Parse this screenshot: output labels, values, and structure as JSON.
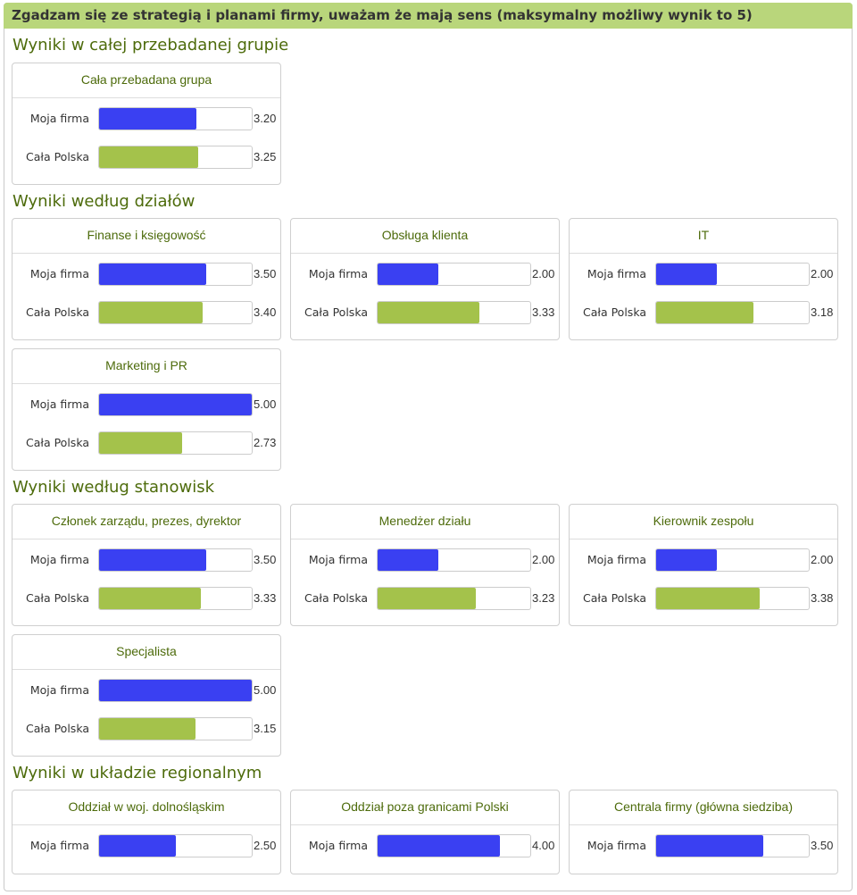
{
  "header": {
    "title": "Zgadzam się ze strategią i planami firmy, uważam że mają sens (maksymalny możliwy wynik to 5)"
  },
  "colors": {
    "moja_firma": "#3a40f2",
    "cala_polska": "#a4c24b",
    "accent": "#b9d67b",
    "title_text": "#4d6b0b"
  },
  "chart_data": {
    "type": "bar",
    "title": "Zgadzam się ze strategią i planami firmy, uważam że mają sens (maksymalny możliwy wynik to 5)",
    "xlim": [
      0,
      5
    ],
    "sections": [
      {
        "title": "Wyniki w całej przebadanej grupie",
        "panels": [
          {
            "title": "Cała przebadana grupa",
            "rows": [
              {
                "label": "Moja firma",
                "value": 3.2,
                "display": "3.20",
                "series": "moja"
              },
              {
                "label": "Cała Polska",
                "value": 3.25,
                "display": "3.25",
                "series": "polska"
              }
            ]
          }
        ]
      },
      {
        "title": "Wyniki według działów",
        "panels": [
          {
            "title": "Finanse i księgowość",
            "rows": [
              {
                "label": "Moja firma",
                "value": 3.5,
                "display": "3.50",
                "series": "moja"
              },
              {
                "label": "Cała Polska",
                "value": 3.4,
                "display": "3.40",
                "series": "polska"
              }
            ]
          },
          {
            "title": "Obsługa klienta",
            "rows": [
              {
                "label": "Moja firma",
                "value": 2.0,
                "display": "2.00",
                "series": "moja"
              },
              {
                "label": "Cała Polska",
                "value": 3.33,
                "display": "3.33",
                "series": "polska"
              }
            ]
          },
          {
            "title": "IT",
            "rows": [
              {
                "label": "Moja firma",
                "value": 2.0,
                "display": "2.00",
                "series": "moja"
              },
              {
                "label": "Cała Polska",
                "value": 3.18,
                "display": "3.18",
                "series": "polska"
              }
            ]
          },
          {
            "title": "Marketing i PR",
            "rows": [
              {
                "label": "Moja firma",
                "value": 5.0,
                "display": "5.00",
                "series": "moja"
              },
              {
                "label": "Cała Polska",
                "value": 2.73,
                "display": "2.73",
                "series": "polska"
              }
            ]
          }
        ]
      },
      {
        "title": "Wyniki według stanowisk",
        "panels": [
          {
            "title": "Członek zarządu, prezes, dyrektor",
            "rows": [
              {
                "label": "Moja firma",
                "value": 3.5,
                "display": "3.50",
                "series": "moja"
              },
              {
                "label": "Cała Polska",
                "value": 3.33,
                "display": "3.33",
                "series": "polska"
              }
            ]
          },
          {
            "title": "Menedżer działu",
            "rows": [
              {
                "label": "Moja firma",
                "value": 2.0,
                "display": "2.00",
                "series": "moja"
              },
              {
                "label": "Cała Polska",
                "value": 3.23,
                "display": "3.23",
                "series": "polska"
              }
            ]
          },
          {
            "title": "Kierownik zespołu",
            "rows": [
              {
                "label": "Moja firma",
                "value": 2.0,
                "display": "2.00",
                "series": "moja"
              },
              {
                "label": "Cała Polska",
                "value": 3.38,
                "display": "3.38",
                "series": "polska"
              }
            ]
          },
          {
            "title": "Specjalista",
            "rows": [
              {
                "label": "Moja firma",
                "value": 5.0,
                "display": "5.00",
                "series": "moja"
              },
              {
                "label": "Cała Polska",
                "value": 3.15,
                "display": "3.15",
                "series": "polska"
              }
            ]
          }
        ]
      },
      {
        "title": "Wyniki w układzie regionalnym",
        "panels": [
          {
            "title": "Oddział w woj. dolnośląskim",
            "rows": [
              {
                "label": "Moja firma",
                "value": 2.5,
                "display": "2.50",
                "series": "moja"
              }
            ]
          },
          {
            "title": "Oddział poza granicami Polski",
            "rows": [
              {
                "label": "Moja firma",
                "value": 4.0,
                "display": "4.00",
                "series": "moja"
              }
            ]
          },
          {
            "title": "Centrala firmy (główna siedziba)",
            "rows": [
              {
                "label": "Moja firma",
                "value": 3.5,
                "display": "3.50",
                "series": "moja"
              }
            ]
          }
        ]
      }
    ]
  }
}
